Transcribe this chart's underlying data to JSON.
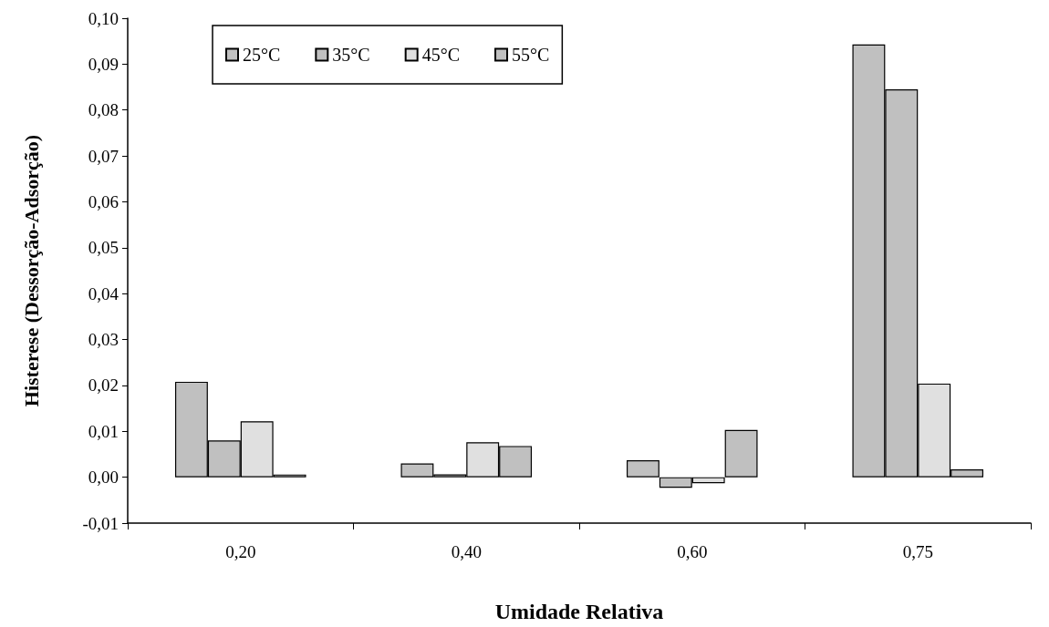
{
  "chart_data": {
    "type": "bar",
    "xlabel": "Umidade Relativa",
    "ylabel": "Histerese (Dessorção-Adsorção)",
    "categories": [
      "0,20",
      "0,40",
      "0,60",
      "0,75"
    ],
    "series": [
      {
        "name": "25°C",
        "color": "#c0c0c0",
        "values": [
          0.0208,
          0.003,
          0.0037,
          0.0943
        ]
      },
      {
        "name": "35°C",
        "color": "#c0c0c0",
        "values": [
          0.008,
          0.0006,
          -0.0023,
          0.0845
        ]
      },
      {
        "name": "45°C",
        "color": "#e0e0e0",
        "values": [
          0.0122,
          0.0076,
          -0.0013,
          0.0204
        ]
      },
      {
        "name": "55°C",
        "color": "#c0c0c0",
        "values": [
          0.0003,
          0.0068,
          0.0103,
          0.0017
        ]
      }
    ],
    "ylim": [
      -0.01,
      0.1
    ],
    "yticks": [
      {
        "value": -0.01,
        "label": "-0,01"
      },
      {
        "value": 0,
        "label": "0,00"
      },
      {
        "value": 0.01,
        "label": "0,01"
      },
      {
        "value": 0.02,
        "label": "0,02"
      },
      {
        "value": 0.03,
        "label": "0,03"
      },
      {
        "value": 0.04,
        "label": "0,04"
      },
      {
        "value": 0.05,
        "label": "0,05"
      },
      {
        "value": 0.06,
        "label": "0,06"
      },
      {
        "value": 0.07,
        "label": "0,07"
      },
      {
        "value": 0.08,
        "label": "0,08"
      },
      {
        "value": 0.09,
        "label": "0,09"
      },
      {
        "value": 0.1,
        "label": "0,10"
      }
    ],
    "grid": false,
    "legend": "top left"
  }
}
